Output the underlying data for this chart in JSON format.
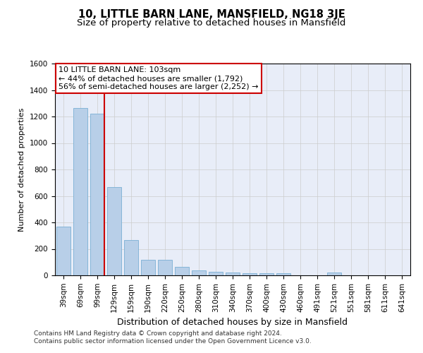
{
  "title": "10, LITTLE BARN LANE, MANSFIELD, NG18 3JE",
  "subtitle": "Size of property relative to detached houses in Mansfield",
  "xlabel": "Distribution of detached houses by size in Mansfield",
  "ylabel": "Number of detached properties",
  "categories": [
    "39sqm",
    "69sqm",
    "99sqm",
    "129sqm",
    "159sqm",
    "190sqm",
    "220sqm",
    "250sqm",
    "280sqm",
    "310sqm",
    "340sqm",
    "370sqm",
    "400sqm",
    "430sqm",
    "460sqm",
    "491sqm",
    "521sqm",
    "551sqm",
    "581sqm",
    "611sqm",
    "641sqm"
  ],
  "values": [
    370,
    1265,
    1220,
    665,
    265,
    115,
    115,
    65,
    35,
    25,
    20,
    15,
    15,
    15,
    0,
    0,
    20,
    0,
    0,
    0,
    0
  ],
  "bar_color": "#b8cfe8",
  "bar_edge_color": "#7aafd4",
  "grid_color": "#cccccc",
  "background_color": "#ffffff",
  "plot_bg_color": "#e8edf8",
  "red_line_x": 2.42,
  "annotation_line1": "10 LITTLE BARN LANE: 103sqm",
  "annotation_line2": "← 44% of detached houses are smaller (1,792)",
  "annotation_line3": "56% of semi-detached houses are larger (2,252) →",
  "annotation_box_color": "#ffffff",
  "annotation_border_color": "#cc0000",
  "ylim": [
    0,
    1600
  ],
  "yticks": [
    0,
    200,
    400,
    600,
    800,
    1000,
    1200,
    1400,
    1600
  ],
  "footer_line1": "Contains HM Land Registry data © Crown copyright and database right 2024.",
  "footer_line2": "Contains public sector information licensed under the Open Government Licence v3.0.",
  "title_fontsize": 10.5,
  "subtitle_fontsize": 9.5,
  "xlabel_fontsize": 9,
  "ylabel_fontsize": 8,
  "tick_fontsize": 7.5,
  "annotation_fontsize": 8,
  "footer_fontsize": 6.5
}
